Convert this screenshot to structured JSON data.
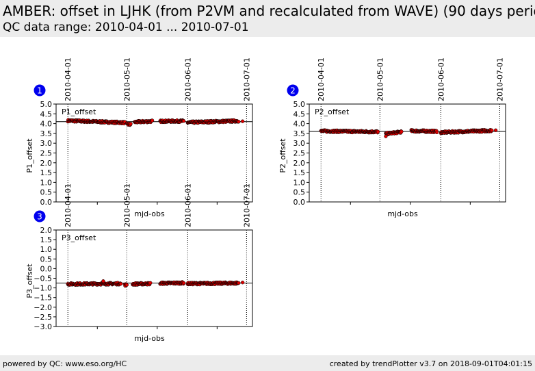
{
  "header": {
    "title": "AMBER: offset in LJHK (from P2VM and recalculated from WAVE) (90 days period)",
    "subtitle": "QC data range: 2010-04-01 ... 2010-07-01"
  },
  "footer": {
    "left": "powered by QC: www.eso.org/HC",
    "right": "created by trendPlotter v3.7 on 2018-09-01T04:01:15"
  },
  "colors": {
    "header_bg": "#ececec",
    "marker_fill": "#e00000",
    "marker_edge": "#000000",
    "badge": "#0000ee"
  },
  "chart_data": [
    {
      "type": "scatter",
      "panel_number": "1",
      "panel_label": "P1_offset",
      "xlabel": "mjd-obs",
      "ylabel": "P1_offset",
      "ylim": [
        0.0,
        5.0
      ],
      "yticks": [
        "0.0",
        "0.5",
        "1.0",
        "1.5",
        "2.0",
        "2.5",
        "3.0",
        "3.5",
        "4.0",
        "4.5",
        "5.0"
      ],
      "xlim": [
        "2010-03-26",
        "2010-07-04"
      ],
      "date_ticks": [
        "2010-04-01",
        "2010-05-01",
        "2010-06-01",
        "2010-07-01"
      ],
      "reference_line": 4.1,
      "segments": [
        {
          "start": "2010-04-01",
          "end": "2010-04-30",
          "start_value": 4.15,
          "end_value": 4.05
        },
        {
          "start": "2010-05-01",
          "end": "2010-05-03",
          "start_value": 3.97,
          "end_value": 3.95
        },
        {
          "start": "2010-05-05",
          "end": "2010-05-14",
          "start_value": 4.08,
          "end_value": 4.12
        },
        {
          "start": "2010-05-18",
          "end": "2010-05-30",
          "start_value": 4.12,
          "end_value": 4.13
        },
        {
          "start": "2010-06-01",
          "end": "2010-06-27",
          "start_value": 4.06,
          "end_value": 4.14
        }
      ],
      "points": [
        {
          "x": "2010-06-29",
          "y": 4.12
        }
      ],
      "grid": false
    },
    {
      "type": "scatter",
      "panel_number": "2",
      "panel_label": "P2_offset",
      "xlabel": "mjd-obs",
      "ylabel": "P2_offset",
      "ylim": [
        0.0,
        5.0
      ],
      "yticks": [
        "0.0",
        "0.5",
        "1.0",
        "1.5",
        "2.0",
        "2.5",
        "3.0",
        "3.5",
        "4.0",
        "4.5",
        "5.0"
      ],
      "xlim": [
        "2010-03-26",
        "2010-07-04"
      ],
      "date_ticks": [
        "2010-04-01",
        "2010-05-01",
        "2010-06-01",
        "2010-07-01"
      ],
      "reference_line": 3.6,
      "segments": [
        {
          "start": "2010-04-01",
          "end": "2010-04-30",
          "start_value": 3.62,
          "end_value": 3.58
        },
        {
          "start": "2010-05-04",
          "end": "2010-05-12",
          "start_value": 3.48,
          "end_value": 3.58
        },
        {
          "start": "2010-05-17",
          "end": "2010-05-30",
          "start_value": 3.63,
          "end_value": 3.6
        },
        {
          "start": "2010-06-01",
          "end": "2010-06-27",
          "start_value": 3.55,
          "end_value": 3.65
        }
      ],
      "points": [
        {
          "x": "2010-05-04",
          "y": 3.35
        },
        {
          "x": "2010-06-29",
          "y": 3.66
        }
      ],
      "grid": false
    },
    {
      "type": "scatter",
      "panel_number": "3",
      "panel_label": "P3_offset",
      "xlabel": "mjd-obs",
      "ylabel": "P3_offset",
      "ylim": [
        -3.0,
        2.0
      ],
      "yticks": [
        "−3.0",
        "−2.5",
        "−2.0",
        "−1.5",
        "−1.0",
        "−0.5",
        "0.0",
        "0.5",
        "1.0",
        "1.5",
        "2.0"
      ],
      "xlim": [
        "2010-03-26",
        "2010-07-04"
      ],
      "date_ticks": [
        "2010-04-01",
        "2010-05-01",
        "2010-06-01",
        "2010-07-01"
      ],
      "reference_line": -0.75,
      "segments": [
        {
          "start": "2010-04-01",
          "end": "2010-04-28",
          "start_value": -0.8,
          "end_value": -0.78
        },
        {
          "start": "2010-04-30",
          "end": "2010-05-01",
          "start_value": -0.85,
          "end_value": -0.83
        },
        {
          "start": "2010-05-04",
          "end": "2010-05-13",
          "start_value": -0.8,
          "end_value": -0.78
        },
        {
          "start": "2010-05-18",
          "end": "2010-05-30",
          "start_value": -0.76,
          "end_value": -0.74
        },
        {
          "start": "2010-06-01",
          "end": "2010-06-27",
          "start_value": -0.78,
          "end_value": -0.75
        }
      ],
      "points": [
        {
          "x": "2010-04-19",
          "y": -0.65
        },
        {
          "x": "2010-06-29",
          "y": -0.72
        }
      ],
      "grid": false
    }
  ]
}
